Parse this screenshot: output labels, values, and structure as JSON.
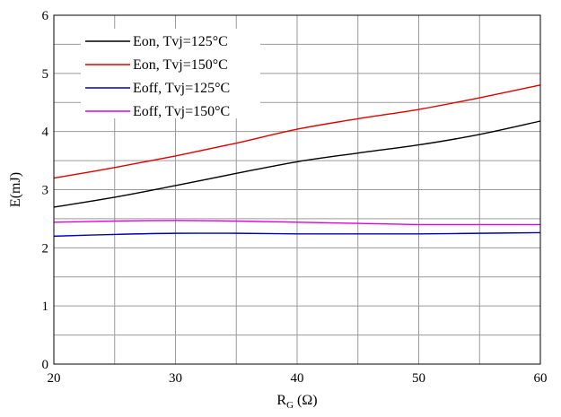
{
  "chart_data": {
    "type": "line",
    "title": "",
    "xlabel_main": "R",
    "xlabel_sub": "G",
    "xlabel_unit": " (Ω)",
    "ylabel": "E(mJ)",
    "xlim": [
      20,
      60
    ],
    "ylim": [
      0,
      6
    ],
    "x_ticks": [
      "20",
      "30",
      "40",
      "50",
      "60"
    ],
    "y_ticks": [
      "0",
      "1",
      "2",
      "3",
      "4",
      "5",
      "6"
    ],
    "grid": true,
    "legend_position": "top-left",
    "x": [
      20,
      25,
      30,
      35,
      40,
      45,
      50,
      55,
      60
    ],
    "series": [
      {
        "name": "Eon, Tvj=125°C",
        "color": "#000000",
        "values": [
          2.7,
          2.87,
          3.07,
          3.28,
          3.48,
          3.63,
          3.77,
          3.95,
          4.18
        ]
      },
      {
        "name": "Eon, Tvj=150°C",
        "color": "#e00000",
        "values": [
          3.2,
          3.38,
          3.58,
          3.8,
          4.04,
          4.22,
          4.38,
          4.58,
          4.8
        ]
      },
      {
        "name": "Eoff, Tvj=125°C",
        "color": "#0000c0",
        "values": [
          2.2,
          2.23,
          2.25,
          2.25,
          2.24,
          2.24,
          2.24,
          2.25,
          2.26
        ]
      },
      {
        "name": "Eoff, Tvj=150°C",
        "color": "#e000e0",
        "values": [
          2.44,
          2.46,
          2.47,
          2.46,
          2.44,
          2.42,
          2.4,
          2.4,
          2.4
        ]
      }
    ]
  }
}
